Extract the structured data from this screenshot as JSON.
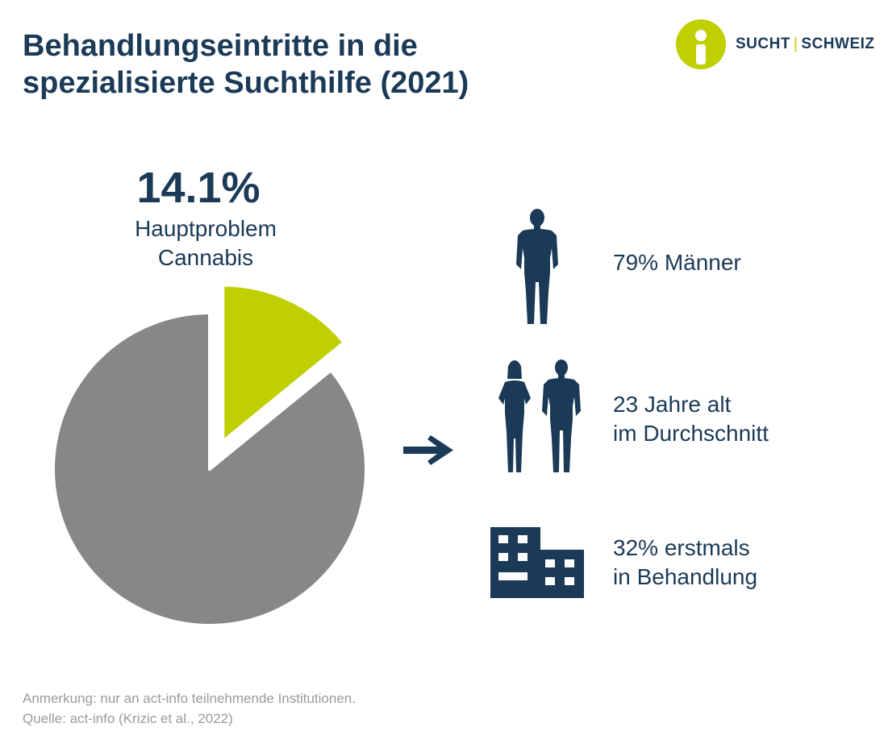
{
  "title": {
    "line1": "Behandlungseintritte in die",
    "line2": "spezialisierte Suchthilfe (2021)"
  },
  "logo": {
    "left": "SUCHT",
    "separator": "|",
    "right": "SCHWEIZ",
    "icon": "person-circle-logo-icon"
  },
  "highlight": {
    "value": "14.1%",
    "label_line1": "Hauptproblem",
    "label_line2": "Cannabis"
  },
  "chart_data": {
    "type": "pie",
    "slices": [
      {
        "label": "Hauptproblem Cannabis",
        "value": 14.1,
        "color": "#bfcf00",
        "exploded": true
      },
      {
        "value": 85.9,
        "color": "#878787",
        "exploded": false
      }
    ]
  },
  "facts": [
    {
      "icon": "man-silhouette-icon",
      "line1": "79% Männer",
      "line2": ""
    },
    {
      "icon": "woman-and-man-silhouette-icon",
      "line1": "23 Jahre alt",
      "line2": "im Durchschnitt"
    },
    {
      "icon": "building-icon",
      "line1": "32% erstmals",
      "line2": "in Behandlung"
    }
  ],
  "arrow_icon": "arrow-right-icon",
  "notes": {
    "line1": "Anmerkung: nur an act-info teilnehmende Institutionen.",
    "line2": "Quelle: act-info (Krizic et al., 2022)"
  },
  "colors": {
    "navy": "#1b3a57",
    "accent": "#bfcf00",
    "grey": "#878787",
    "note": "#9a9a9a"
  }
}
